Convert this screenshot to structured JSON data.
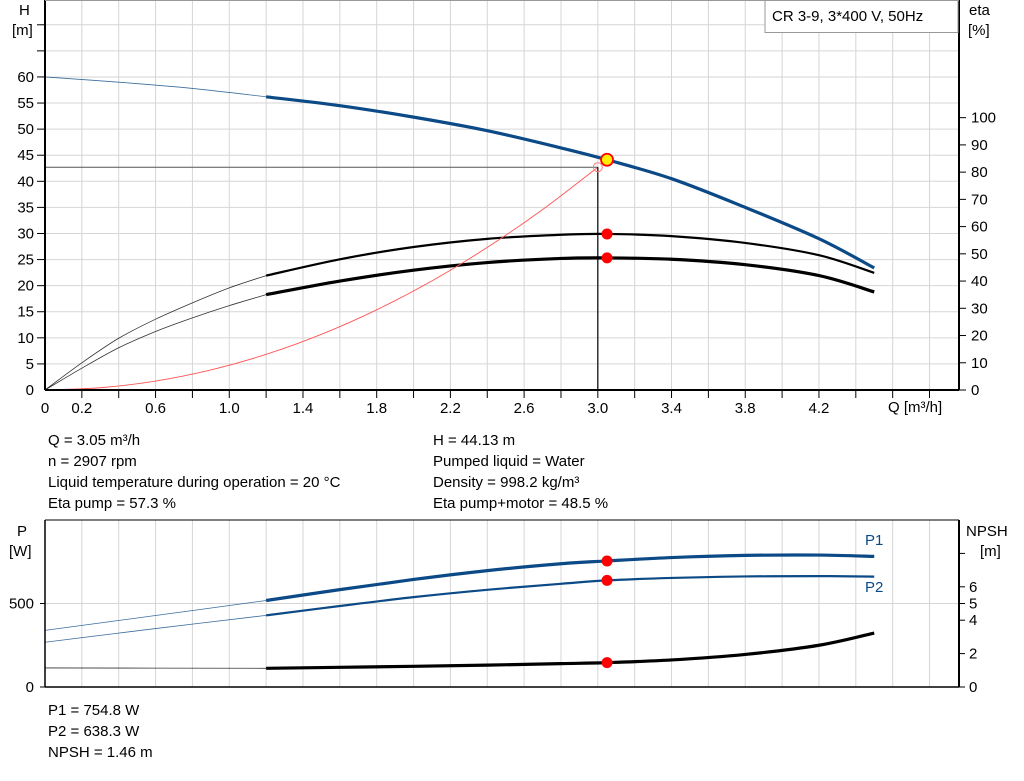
{
  "chart_data": [
    {
      "type": "line",
      "title": "CR 3-9, 3*400 V, 50Hz",
      "xlabel": "Q [m³/h]",
      "ylabel": "H",
      "ylabel_unit": "[m]",
      "y2label": "eta",
      "y2label_unit": "[%]",
      "xlim": [
        0,
        4.96
      ],
      "ylim": [
        0,
        74.75
      ],
      "y2lim": [
        0,
        143.2
      ],
      "grid": true,
      "legend_placement": "top-right",
      "x_ticks": [
        "0",
        "0.2",
        "0.6",
        "1.0",
        "1.4",
        "1.8",
        "2.2",
        "2.6",
        "3.0",
        "3.4",
        "3.8",
        "4.2"
      ],
      "x_tick_values": [
        0,
        0.2,
        0.6,
        1.0,
        1.4,
        1.8,
        2.2,
        2.6,
        3.0,
        3.4,
        3.8,
        4.2
      ],
      "y_ticks": [
        0,
        5,
        10,
        15,
        20,
        25,
        30,
        35,
        40,
        45,
        50,
        55,
        60
      ],
      "y2_ticks": [
        0,
        10,
        20,
        30,
        40,
        50,
        60,
        70,
        80,
        90,
        100
      ],
      "series": [
        {
          "id": "H",
          "axis": "left",
          "color": "#0b4a86",
          "thick_from": 1.2,
          "x": [
            0,
            0.4,
            0.8,
            1.2,
            1.6,
            2.0,
            2.4,
            2.8,
            3.05,
            3.4,
            3.8,
            4.2,
            4.5
          ],
          "y": [
            60,
            59,
            57.8,
            56.2,
            54.5,
            52.3,
            49.7,
            46.4,
            44.13,
            40.5,
            35,
            29,
            23.4
          ]
        },
        {
          "id": "eta-pump",
          "axis": "right",
          "color": "#000000",
          "thick_from": 1.2,
          "x": [
            0,
            0.2,
            0.4,
            0.6,
            0.8,
            1.0,
            1.2,
            1.6,
            2.0,
            2.4,
            2.8,
            3.05,
            3.4,
            3.8,
            4.2,
            4.5
          ],
          "y": [
            0,
            10,
            19,
            26,
            32,
            37.5,
            42,
            48,
            52.5,
            55.5,
            57,
            57.3,
            56.5,
            54,
            49.5,
            43
          ]
        },
        {
          "id": "eta-pump-motor",
          "axis": "right",
          "color": "#000000",
          "thick_from": 1.2,
          "x": [
            0,
            0.2,
            0.4,
            0.6,
            0.8,
            1.0,
            1.2,
            1.6,
            2.0,
            2.4,
            2.8,
            3.05,
            3.4,
            3.8,
            4.2,
            4.5
          ],
          "y": [
            0,
            8,
            15.5,
            21.5,
            26.5,
            31,
            35,
            40,
            44,
            46.8,
            48.3,
            48.5,
            48,
            46,
            42,
            36
          ]
        },
        {
          "id": "system-curve",
          "axis": "left",
          "color": "#ff5555",
          "x": [
            0,
            0.3,
            0.6,
            0.9,
            1.2,
            1.5,
            1.8,
            2.1,
            2.4,
            2.7,
            3.0
          ],
          "y": [
            0,
            0.43,
            1.71,
            3.84,
            6.83,
            10.67,
            15.37,
            20.92,
            27.33,
            34.58,
            42.7
          ]
        }
      ],
      "duty_point": {
        "Q": 3.05,
        "H": 44.13,
        "eta_pump": 57.3,
        "eta_total": 48.5,
        "color": "#ffee00"
      },
      "requested_point": {
        "Q": 3.0,
        "H": 42.7
      }
    },
    {
      "type": "line",
      "ylabel": "P",
      "ylabel_unit": "[W]",
      "y2label": "NPSH",
      "y2label_unit": "[m]",
      "xlim": [
        0,
        4.96
      ],
      "ylim": [
        0,
        1000
      ],
      "y2lim": [
        0,
        10
      ],
      "grid": true,
      "y_ticks": [
        0,
        500
      ],
      "y2_ticks": [
        0,
        2,
        4,
        5,
        6,
        8
      ],
      "y2_tick_labels": [
        "0",
        "2",
        "4",
        "5",
        "6",
        ""
      ],
      "series": [
        {
          "id": "P1",
          "name": "P1",
          "axis": "left",
          "color": "#0b4a86",
          "thick_from": 1.2,
          "x": [
            0,
            0.6,
            1.2,
            1.6,
            2.0,
            2.4,
            2.8,
            3.05,
            3.4,
            3.8,
            4.2,
            4.5
          ],
          "y": [
            339,
            428,
            518,
            583,
            644,
            697,
            738,
            754.8,
            775,
            788,
            790,
            782
          ]
        },
        {
          "id": "P2",
          "name": "P2",
          "axis": "left",
          "color": "#0b4a86",
          "thick_from": 1.2,
          "x": [
            0,
            0.6,
            1.2,
            1.6,
            2.0,
            2.4,
            2.8,
            3.05,
            3.4,
            3.8,
            4.2,
            4.5
          ],
          "y": [
            268,
            350,
            429,
            485,
            538,
            582,
            618,
            638.3,
            653,
            662,
            664,
            661
          ]
        },
        {
          "id": "NPSH",
          "axis": "right",
          "color": "#000000",
          "thick_from": 1.2,
          "x": [
            0,
            1.2,
            1.6,
            2.0,
            2.4,
            2.8,
            3.05,
            3.4,
            3.8,
            4.2,
            4.5
          ],
          "y": [
            1.14,
            1.12,
            1.18,
            1.24,
            1.31,
            1.4,
            1.46,
            1.62,
            1.95,
            2.5,
            3.23
          ]
        }
      ],
      "duty_point": {
        "Q": 3.05,
        "P1": 754.8,
        "P2": 638.3,
        "NPSH": 1.46
      }
    }
  ],
  "info": {
    "left": [
      "Q = 3.05 m³/h",
      "n = 2907 rpm",
      "Liquid temperature during operation = 20 °C",
      "Eta pump = 57.3 %"
    ],
    "right": [
      "H = 44.13 m",
      "Pumped liquid = Water",
      "Density = 998.2 kg/m³",
      "Eta pump+motor = 48.5 %"
    ],
    "bottom": [
      "P1 = 754.8 W",
      "P2 = 638.3 W",
      "NPSH = 1.46 m"
    ]
  }
}
